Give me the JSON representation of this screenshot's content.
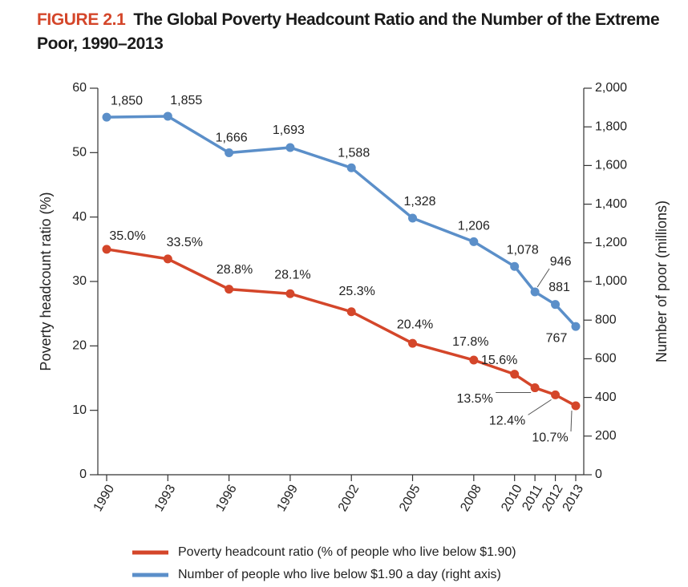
{
  "chart_data": {
    "type": "line",
    "figure_label": "FIGURE 2.1",
    "title": "The Global Poverty Headcount Ratio and the Number of the Extreme Poor, 1990–2013",
    "ylabel": "Poverty headcount ratio (%)",
    "y2label": "Number of poor (millions)",
    "x": [
      1990,
      1993,
      1996,
      1999,
      2002,
      2005,
      2008,
      2010,
      2011,
      2012,
      2013
    ],
    "xlim": [
      1990,
      2013
    ],
    "xticks": [
      1990,
      1993,
      1996,
      1999,
      2002,
      2005,
      2008,
      2010,
      2011,
      2012,
      2013
    ],
    "ylim": [
      0,
      60
    ],
    "yticks": [
      0,
      10,
      20,
      30,
      40,
      50,
      60
    ],
    "y2lim": [
      0,
      2000
    ],
    "y2ticks": [
      0,
      200,
      400,
      600,
      800,
      {
        "value": 1000,
        "label": "1,000"
      },
      {
        "value": 1200,
        "label": "1,200"
      },
      {
        "value": 1400,
        "label": "1,400"
      },
      {
        "value": 1600,
        "label": "1,600"
      },
      {
        "value": 1800,
        "label": "1,800"
      },
      {
        "value": 2000,
        "label": "2,000"
      }
    ],
    "series": [
      {
        "name": "Poverty headcount ratio (% of people who live below $1.90)",
        "color": "#d4462a",
        "axis": "y",
        "values": [
          35.0,
          33.5,
          28.8,
          28.1,
          25.3,
          20.4,
          17.8,
          15.6,
          13.5,
          12.4,
          10.7
        ],
        "value_labels": [
          "35.0%",
          "33.5%",
          "28.8%",
          "28.1%",
          "25.3%",
          "20.4%",
          "17.8%",
          "15.6%",
          "13.5%",
          "12.4%",
          "10.7%"
        ]
      },
      {
        "name": "Number of people who live below $1.90 a day (right axis)",
        "color": "#5b8fc9",
        "axis": "y2",
        "values": [
          1850,
          1855,
          1666,
          1693,
          1588,
          1328,
          1206,
          1078,
          946,
          881,
          767
        ],
        "value_labels": [
          "1,850",
          "1,855",
          "1,666",
          "1,693",
          "1,588",
          "1,328",
          "1,206",
          "1,078",
          "946",
          "881",
          "767"
        ]
      }
    ]
  }
}
